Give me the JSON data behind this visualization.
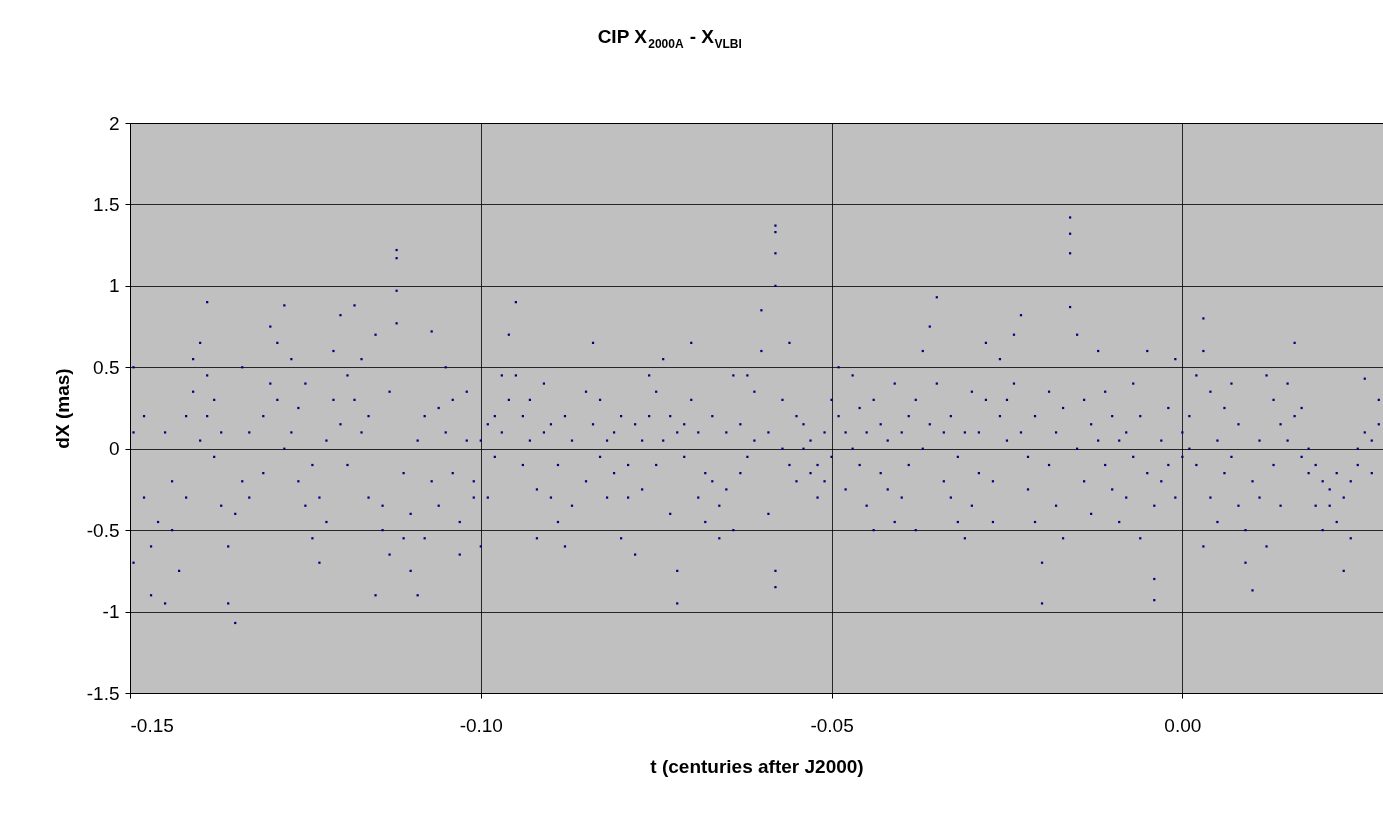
{
  "chart_data": {
    "type": "scatter",
    "title": "CIP X$_{2000A}$ - X$_{VLBI}$",
    "xlabel": "t (centuries after J2000)",
    "ylabel": "dX (mas)",
    "xlim": [
      -0.15,
      0.0286
    ],
    "ylim": [
      -1.5,
      2
    ],
    "xticks": [
      {
        "value": -0.15,
        "label": "-0.15"
      },
      {
        "value": -0.1,
        "label": "-0.10"
      },
      {
        "value": -0.05,
        "label": "-0.05"
      },
      {
        "value": 0,
        "label": "0.00"
      }
    ],
    "yticks": [
      -1.5,
      {
        "value": -1,
        "label": "-1"
      },
      -0.5,
      {
        "value": 0,
        "label": "0"
      },
      0.5,
      {
        "value": 1,
        "label": "1"
      },
      1.5,
      {
        "value": 2,
        "label": "2"
      }
    ],
    "grid": true,
    "legend": false,
    "marker": "square",
    "series": [
      {
        "color": "#000080",
        "x": [
          -0.1495,
          -0.1495,
          -0.1495,
          -0.148,
          -0.148,
          -0.147,
          -0.147,
          -0.146,
          -0.145,
          -0.145,
          -0.144,
          -0.144,
          -0.143,
          -0.142,
          -0.142,
          -0.141,
          -0.141,
          -0.14,
          -0.14,
          -0.139,
          -0.139,
          -0.139,
          -0.138,
          -0.138,
          -0.137,
          -0.137,
          -0.136,
          -0.136,
          -0.135,
          -0.135,
          -0.134,
          -0.134,
          -0.133,
          -0.133,
          -0.131,
          -0.131,
          -0.13,
          -0.13,
          -0.129,
          -0.129,
          -0.128,
          -0.128,
          -0.127,
          -0.127,
          -0.126,
          -0.126,
          -0.125,
          -0.125,
          -0.124,
          -0.124,
          -0.123,
          -0.123,
          -0.122,
          -0.122,
          -0.121,
          -0.121,
          -0.12,
          -0.12,
          -0.119,
          -0.119,
          -0.118,
          -0.118,
          -0.117,
          -0.117,
          -0.116,
          -0.116,
          -0.115,
          -0.115,
          -0.114,
          -0.114,
          -0.113,
          -0.113,
          -0.112,
          -0.112,
          -0.112,
          -0.112,
          -0.111,
          -0.111,
          -0.11,
          -0.11,
          -0.109,
          -0.109,
          -0.108,
          -0.108,
          -0.107,
          -0.107,
          -0.106,
          -0.106,
          -0.105,
          -0.105,
          -0.104,
          -0.104,
          -0.103,
          -0.103,
          -0.102,
          -0.102,
          -0.101,
          -0.101,
          -0.1,
          -0.1,
          -0.099,
          -0.099,
          -0.098,
          -0.098,
          -0.097,
          -0.097,
          -0.096,
          -0.096,
          -0.095,
          -0.095,
          -0.094,
          -0.094,
          -0.093,
          -0.093,
          -0.092,
          -0.092,
          -0.091,
          -0.091,
          -0.09,
          -0.09,
          -0.089,
          -0.089,
          -0.088,
          -0.088,
          -0.087,
          -0.087,
          -0.085,
          -0.085,
          -0.084,
          -0.084,
          -0.083,
          -0.083,
          -0.082,
          -0.082,
          -0.081,
          -0.081,
          -0.08,
          -0.08,
          -0.079,
          -0.079,
          -0.078,
          -0.078,
          -0.077,
          -0.077,
          -0.076,
          -0.076,
          -0.075,
          -0.075,
          -0.074,
          -0.074,
          -0.073,
          -0.073,
          -0.072,
          -0.072,
          -0.072,
          -0.071,
          -0.071,
          -0.07,
          -0.07,
          -0.069,
          -0.069,
          -0.068,
          -0.068,
          -0.067,
          -0.067,
          -0.066,
          -0.066,
          -0.065,
          -0.065,
          -0.064,
          -0.064,
          -0.063,
          -0.063,
          -0.062,
          -0.062,
          -0.061,
          -0.061,
          -0.06,
          -0.06,
          -0.059,
          -0.059,
          -0.058,
          -0.058,
          -0.058,
          -0.058,
          -0.058,
          -0.058,
          -0.057,
          -0.057,
          -0.056,
          -0.056,
          -0.055,
          -0.055,
          -0.054,
          -0.054,
          -0.053,
          -0.053,
          -0.052,
          -0.052,
          -0.051,
          -0.051,
          -0.05,
          -0.05,
          -0.049,
          -0.049,
          -0.048,
          -0.048,
          -0.047,
          -0.047,
          -0.046,
          -0.046,
          -0.045,
          -0.045,
          -0.044,
          -0.044,
          -0.043,
          -0.043,
          -0.042,
          -0.042,
          -0.041,
          -0.041,
          -0.04,
          -0.04,
          -0.039,
          -0.039,
          -0.038,
          -0.038,
          -0.037,
          -0.037,
          -0.036,
          -0.036,
          -0.035,
          -0.035,
          -0.034,
          -0.034,
          -0.033,
          -0.033,
          -0.032,
          -0.032,
          -0.031,
          -0.031,
          -0.03,
          -0.03,
          -0.029,
          -0.029,
          -0.028,
          -0.028,
          -0.027,
          -0.027,
          -0.026,
          -0.026,
          -0.025,
          -0.025,
          -0.024,
          -0.024,
          -0.023,
          -0.023,
          -0.022,
          -0.022,
          -0.021,
          -0.021,
          -0.02,
          -0.02,
          -0.019,
          -0.019,
          -0.018,
          -0.018,
          -0.017,
          -0.017,
          -0.016,
          -0.016,
          -0.016,
          -0.016,
          -0.015,
          -0.015,
          -0.014,
          -0.014,
          -0.013,
          -0.013,
          -0.012,
          -0.012,
          -0.011,
          -0.011,
          -0.01,
          -0.01,
          -0.009,
          -0.009,
          -0.008,
          -0.008,
          -0.007,
          -0.007,
          -0.006,
          -0.006,
          -0.005,
          -0.005,
          -0.004,
          -0.004,
          -0.004,
          -0.003,
          -0.003,
          -0.002,
          -0.002,
          -0.001,
          -0.001,
          0.0,
          0.0,
          0.001,
          0.001,
          0.002,
          0.002,
          0.003,
          0.003,
          0.003,
          0.004,
          0.004,
          0.005,
          0.005,
          0.006,
          0.006,
          0.007,
          0.007,
          0.008,
          0.008,
          0.009,
          0.009,
          0.01,
          0.01,
          0.011,
          0.011,
          0.012,
          0.012,
          0.013,
          0.013,
          0.014,
          0.014,
          0.015,
          0.015,
          0.016,
          0.016,
          0.017,
          0.017,
          0.018,
          0.018,
          0.019,
          0.019,
          0.02,
          0.02,
          0.021,
          0.021,
          0.022,
          0.022,
          0.023,
          0.023,
          0.024,
          0.024,
          0.025,
          0.025,
          0.026,
          0.026,
          0.027,
          0.027,
          0.028,
          0.028
        ],
        "values": [
          0.5,
          -0.7,
          0.1,
          -0.3,
          0.2,
          -0.9,
          -0.6,
          -0.45,
          -0.95,
          0.1,
          -0.5,
          -0.2,
          -0.75,
          0.2,
          -0.3,
          0.55,
          0.35,
          0.05,
          0.65,
          0.9,
          0.45,
          0.2,
          -0.05,
          0.3,
          -0.35,
          0.1,
          -0.95,
          -0.6,
          -1.07,
          -0.4,
          -0.2,
          0.5,
          -0.3,
          0.1,
          0.2,
          -0.15,
          0.4,
          0.75,
          0.65,
          0.3,
          0.88,
          0.0,
          0.55,
          0.1,
          0.25,
          -0.2,
          -0.35,
          0.4,
          -0.55,
          -0.1,
          -0.7,
          -0.3,
          -0.45,
          0.05,
          0.3,
          0.6,
          0.82,
          0.15,
          0.45,
          -0.1,
          0.88,
          0.3,
          0.55,
          0.1,
          0.2,
          -0.3,
          0.7,
          -0.9,
          -0.5,
          -0.35,
          0.35,
          -0.65,
          1.22,
          1.17,
          0.97,
          0.77,
          -0.55,
          -0.15,
          -0.75,
          -0.4,
          -0.9,
          0.05,
          -0.55,
          0.2,
          0.72,
          -0.2,
          0.25,
          -0.35,
          0.5,
          0.1,
          -0.15,
          0.3,
          -0.65,
          -0.45,
          0.35,
          0.05,
          -0.2,
          -0.3,
          -0.6,
          0.05,
          -0.3,
          0.15,
          0.2,
          -0.05,
          0.45,
          0.1,
          0.7,
          0.3,
          0.9,
          0.45,
          0.2,
          -0.1,
          0.05,
          0.3,
          -0.25,
          -0.55,
          0.1,
          0.4,
          -0.3,
          0.15,
          -0.1,
          -0.45,
          0.2,
          -0.6,
          0.05,
          -0.35,
          0.35,
          -0.2,
          0.65,
          0.15,
          0.3,
          -0.05,
          0.05,
          -0.3,
          -0.15,
          0.1,
          -0.55,
          0.2,
          -0.1,
          -0.3,
          -0.65,
          0.15,
          0.05,
          -0.25,
          0.45,
          0.2,
          0.35,
          -0.1,
          0.55,
          0.05,
          0.2,
          -0.4,
          -0.95,
          -0.75,
          0.1,
          0.15,
          -0.05,
          0.65,
          0.3,
          -0.3,
          0.1,
          -0.45,
          -0.15,
          -0.2,
          0.2,
          -0.55,
          -0.35,
          0.1,
          -0.25,
          0.45,
          -0.5,
          0.15,
          -0.15,
          0.45,
          -0.05,
          0.35,
          0.05,
          0.85,
          0.6,
          -0.4,
          0.1,
          1.37,
          1.33,
          1.2,
          1.0,
          -0.75,
          -0.85,
          0.3,
          0.0,
          0.65,
          -0.1,
          0.2,
          -0.2,
          0.0,
          0.15,
          -0.15,
          0.05,
          -0.3,
          -0.1,
          -0.2,
          0.1,
          0.3,
          -0.05,
          0.5,
          0.2,
          0.1,
          -0.25,
          0.45,
          0.0,
          -0.1,
          0.25,
          -0.35,
          0.1,
          -0.5,
          0.3,
          0.15,
          -0.15,
          -0.25,
          0.05,
          0.4,
          -0.45,
          0.1,
          -0.3,
          -0.1,
          0.2,
          0.3,
          -0.5,
          0.6,
          0.0,
          0.75,
          0.15,
          0.93,
          0.4,
          -0.2,
          0.1,
          0.2,
          -0.3,
          -0.05,
          -0.45,
          -0.55,
          0.1,
          0.35,
          -0.35,
          0.1,
          -0.15,
          0.65,
          0.3,
          -0.45,
          -0.2,
          0.55,
          0.2,
          0.3,
          0.05,
          0.7,
          0.4,
          0.82,
          0.1,
          -0.25,
          -0.05,
          -0.45,
          0.2,
          -0.95,
          -0.7,
          0.35,
          -0.1,
          0.1,
          -0.35,
          -0.55,
          0.25,
          1.42,
          1.32,
          1.2,
          0.87,
          0.7,
          0.0,
          0.3,
          -0.2,
          -0.4,
          0.15,
          0.6,
          0.05,
          -0.1,
          0.35,
          0.2,
          -0.25,
          -0.45,
          0.05,
          0.1,
          -0.3,
          -0.05,
          0.4,
          -0.55,
          0.2,
          0.6,
          -0.15,
          -0.93,
          -0.8,
          -0.35,
          0.05,
          -0.2,
          -0.1,
          0.25,
          0.55,
          -0.3,
          0.1,
          -0.05,
          0.2,
          0.0,
          0.45,
          -0.1,
          0.8,
          0.6,
          -0.6,
          0.35,
          -0.3,
          0.05,
          -0.45,
          0.25,
          -0.15,
          -0.05,
          0.4,
          -0.35,
          0.15,
          -0.7,
          -0.5,
          -0.87,
          -0.2,
          -0.3,
          0.05,
          -0.6,
          0.45,
          0.3,
          -0.1,
          -0.35,
          0.15,
          0.4,
          0.05,
          0.65,
          0.2,
          -0.05,
          0.25,
          -0.15,
          0.0,
          -0.35,
          -0.1,
          -0.5,
          -0.2,
          -0.25,
          -0.35,
          -0.15,
          -0.45,
          -0.75,
          -0.3,
          -0.2,
          -0.55,
          -0.1,
          0.0,
          0.43,
          0.1,
          0.05,
          -0.15,
          0.3,
          0.15
        ]
      }
    ]
  }
}
